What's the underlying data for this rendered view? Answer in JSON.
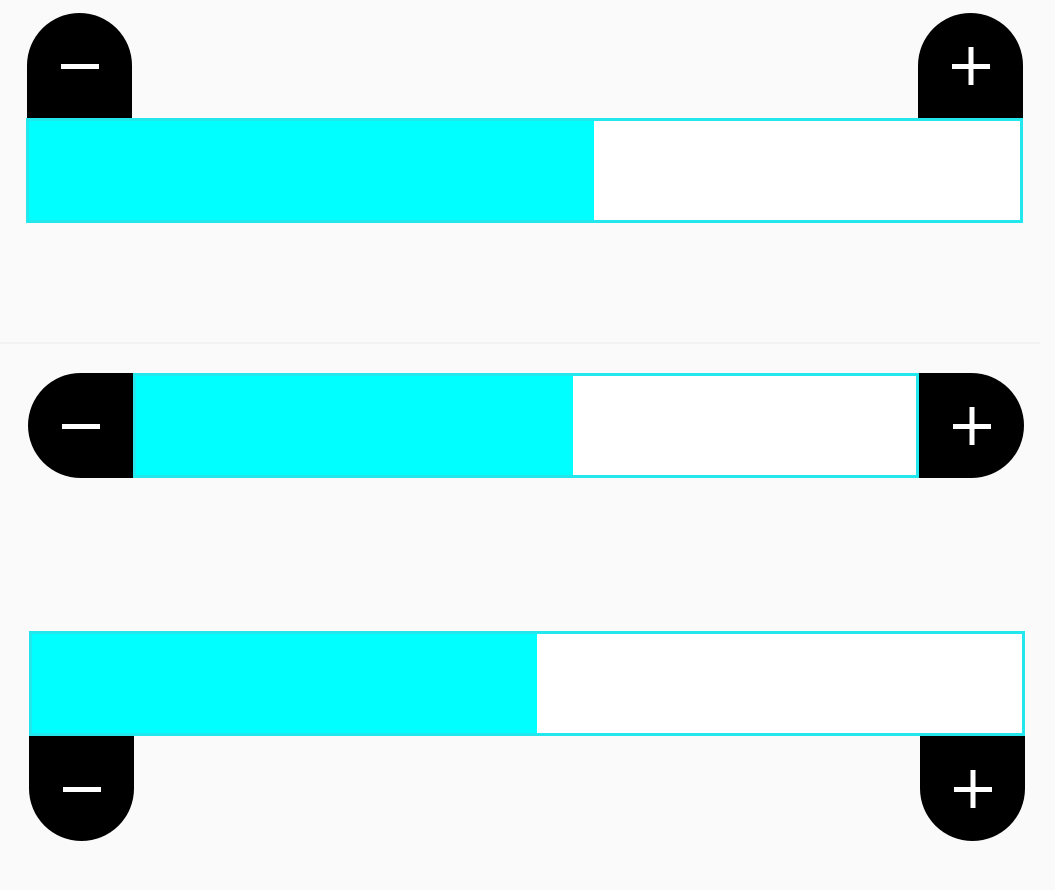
{
  "colors": {
    "background": "#fafafa",
    "fill": "#00ffff",
    "track_border": "#22e8ee",
    "track": "#ffffff",
    "button": "#000000",
    "glyph": "#ffffff"
  },
  "steppers": [
    {
      "layout": "buttons-above-bar",
      "value_fraction": 0.57,
      "decrement_icon": "minus-icon",
      "increment_icon": "plus-icon"
    },
    {
      "layout": "buttons-inline-with-bar",
      "value_fraction": 0.56,
      "decrement_icon": "minus-icon",
      "increment_icon": "plus-icon"
    },
    {
      "layout": "buttons-below-bar",
      "value_fraction": 0.51,
      "decrement_icon": "minus-icon",
      "increment_icon": "plus-icon"
    }
  ]
}
